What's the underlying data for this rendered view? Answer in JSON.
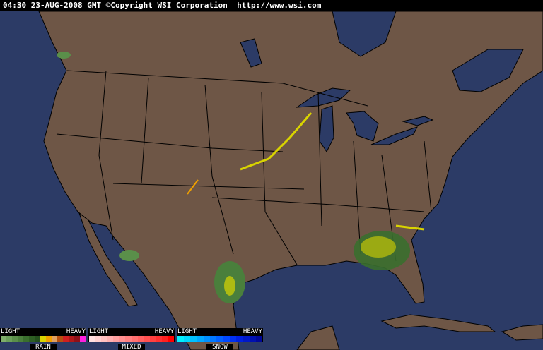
{
  "header": {
    "timestamp": "04:30 23-AUG-2008 GMT",
    "copyright": "©Copyright WSI Corporation",
    "url": "http://www.wsi.com"
  },
  "colors": {
    "ocean": "#2c3b66",
    "land": "#6e5646",
    "borders": "#000000"
  },
  "legend": [
    {
      "type": "RAIN",
      "light": "LIGHT",
      "heavy": "HEAVY",
      "colors": [
        "#7fae6a",
        "#6b9f5a",
        "#5a8f4a",
        "#4a7f3c",
        "#3a6f2e",
        "#2e5f24",
        "#24501c",
        "#d9d400",
        "#f0a000",
        "#e0a060",
        "#b85010",
        "#d02020",
        "#b01818",
        "#901018",
        "#ff20e0"
      ]
    },
    {
      "type": "MIXED",
      "light": "LIGHT",
      "heavy": "HEAVY",
      "colors": [
        "#ffe0e0",
        "#ffd0d0",
        "#ffc0c0",
        "#ffb0b0",
        "#ffa0a0",
        "#ff9090",
        "#ff8080",
        "#ff7070",
        "#ff6060",
        "#ff5050",
        "#ff4040",
        "#ff3030",
        "#ff2020",
        "#ff0000"
      ]
    },
    {
      "type": "SNOW",
      "light": "LIGHT",
      "heavy": "HEAVY",
      "colors": [
        "#00f0ff",
        "#00d8ff",
        "#00c0ff",
        "#00a8ff",
        "#0090ff",
        "#0078ff",
        "#0060ff",
        "#0048ff",
        "#0030f0",
        "#0020e0",
        "#0018c8",
        "#0010b0",
        "#000898"
      ]
    }
  ]
}
